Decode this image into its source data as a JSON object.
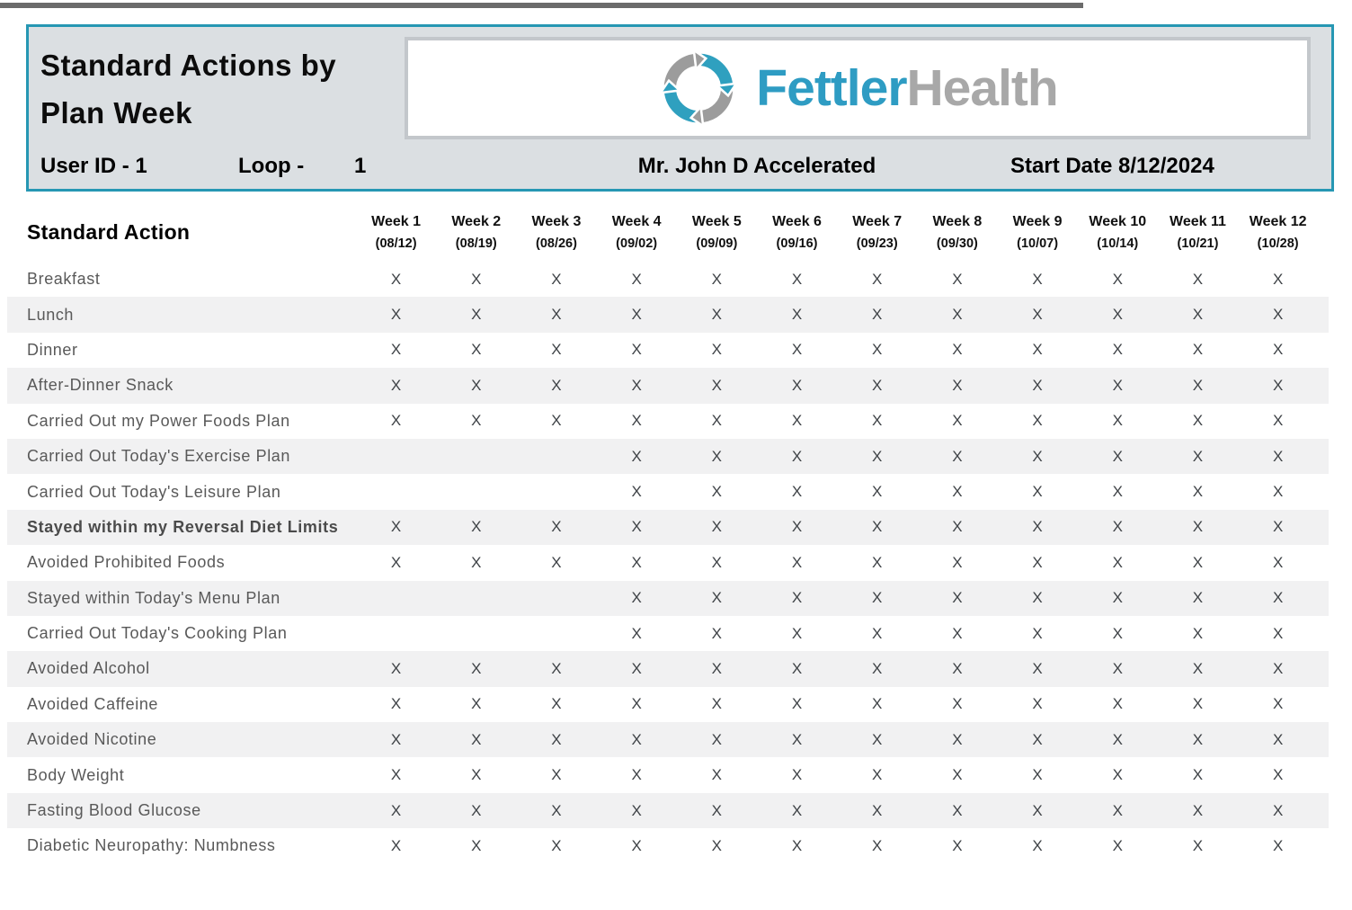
{
  "colors": {
    "accent_teal_border": "#2697B3",
    "header_background": "#DBDFE2",
    "logo_blue": "#2E9CC3",
    "logo_gray": "#A8A8A8",
    "icon_teal": "#2FA0BF",
    "icon_gray": "#9C9C9C",
    "row_stripe": "#F1F1F2",
    "label_text": "#595959",
    "mark_text": "#3F4347"
  },
  "header": {
    "title_line1": "Standard Actions by",
    "title_line2": "Plan Week",
    "user_id": "User ID - 1",
    "loop_label": "Loop -",
    "loop_value": "1",
    "patient": "Mr. John D Accelerated",
    "start_date": "Start Date 8/12/2024",
    "logo": {
      "icon": "circular-arrows-icon",
      "primary": "Fettler",
      "secondary": "Health"
    }
  },
  "table": {
    "column_header": "Standard Action",
    "mark_symbol": "X",
    "weeks": [
      {
        "label": "Week 1",
        "date": "(08/12)"
      },
      {
        "label": "Week 2",
        "date": "(08/19)"
      },
      {
        "label": "Week 3",
        "date": "(08/26)"
      },
      {
        "label": "Week 4",
        "date": "(09/02)"
      },
      {
        "label": "Week 5",
        "date": "(09/09)"
      },
      {
        "label": "Week 6",
        "date": "(09/16)"
      },
      {
        "label": "Week 7",
        "date": "(09/23)"
      },
      {
        "label": "Week 8",
        "date": "(09/30)"
      },
      {
        "label": "Week 9",
        "date": "(10/07)"
      },
      {
        "label": "Week 10",
        "date": "(10/14)"
      },
      {
        "label": "Week 11",
        "date": "(10/21)"
      },
      {
        "label": "Week 12",
        "date": "(10/28)"
      }
    ],
    "rows": [
      {
        "label": "Breakfast",
        "bold": false,
        "marks": [
          "X",
          "X",
          "X",
          "X",
          "X",
          "X",
          "X",
          "X",
          "X",
          "X",
          "X",
          "X"
        ]
      },
      {
        "label": "Lunch",
        "bold": false,
        "marks": [
          "X",
          "X",
          "X",
          "X",
          "X",
          "X",
          "X",
          "X",
          "X",
          "X",
          "X",
          "X"
        ]
      },
      {
        "label": "Dinner",
        "bold": false,
        "marks": [
          "X",
          "X",
          "X",
          "X",
          "X",
          "X",
          "X",
          "X",
          "X",
          "X",
          "X",
          "X"
        ]
      },
      {
        "label": "After-Dinner Snack",
        "bold": false,
        "marks": [
          "X",
          "X",
          "X",
          "X",
          "X",
          "X",
          "X",
          "X",
          "X",
          "X",
          "X",
          "X"
        ]
      },
      {
        "label": "Carried Out my Power Foods Plan",
        "bold": false,
        "marks": [
          "X",
          "X",
          "X",
          "X",
          "X",
          "X",
          "X",
          "X",
          "X",
          "X",
          "X",
          "X"
        ]
      },
      {
        "label": "Carried Out Today's Exercise Plan",
        "bold": false,
        "marks": [
          "",
          "",
          "",
          "X",
          "X",
          "X",
          "X",
          "X",
          "X",
          "X",
          "X",
          "X"
        ]
      },
      {
        "label": "Carried Out Today's Leisure Plan",
        "bold": false,
        "marks": [
          "",
          "",
          "",
          "X",
          "X",
          "X",
          "X",
          "X",
          "X",
          "X",
          "X",
          "X"
        ]
      },
      {
        "label": "Stayed within my Reversal Diet Limits",
        "bold": true,
        "marks": [
          "X",
          "X",
          "X",
          "X",
          "X",
          "X",
          "X",
          "X",
          "X",
          "X",
          "X",
          "X"
        ]
      },
      {
        "label": "Avoided Prohibited Foods",
        "bold": false,
        "marks": [
          "X",
          "X",
          "X",
          "X",
          "X",
          "X",
          "X",
          "X",
          "X",
          "X",
          "X",
          "X"
        ]
      },
      {
        "label": "Stayed within Today's Menu Plan",
        "bold": false,
        "marks": [
          "",
          "",
          "",
          "X",
          "X",
          "X",
          "X",
          "X",
          "X",
          "X",
          "X",
          "X"
        ]
      },
      {
        "label": "Carried Out Today's Cooking Plan",
        "bold": false,
        "marks": [
          "",
          "",
          "",
          "X",
          "X",
          "X",
          "X",
          "X",
          "X",
          "X",
          "X",
          "X"
        ]
      },
      {
        "label": "Avoided Alcohol",
        "bold": false,
        "marks": [
          "X",
          "X",
          "X",
          "X",
          "X",
          "X",
          "X",
          "X",
          "X",
          "X",
          "X",
          "X"
        ]
      },
      {
        "label": "Avoided Caffeine",
        "bold": false,
        "marks": [
          "X",
          "X",
          "X",
          "X",
          "X",
          "X",
          "X",
          "X",
          "X",
          "X",
          "X",
          "X"
        ]
      },
      {
        "label": "Avoided Nicotine",
        "bold": false,
        "marks": [
          "X",
          "X",
          "X",
          "X",
          "X",
          "X",
          "X",
          "X",
          "X",
          "X",
          "X",
          "X"
        ]
      },
      {
        "label": "Body Weight",
        "bold": false,
        "marks": [
          "X",
          "X",
          "X",
          "X",
          "X",
          "X",
          "X",
          "X",
          "X",
          "X",
          "X",
          "X"
        ]
      },
      {
        "label": "Fasting Blood Glucose",
        "bold": false,
        "marks": [
          "X",
          "X",
          "X",
          "X",
          "X",
          "X",
          "X",
          "X",
          "X",
          "X",
          "X",
          "X"
        ]
      },
      {
        "label": "Diabetic Neuropathy: Numbness",
        "bold": false,
        "marks": [
          "X",
          "X",
          "X",
          "X",
          "X",
          "X",
          "X",
          "X",
          "X",
          "X",
          "X",
          "X"
        ]
      }
    ]
  }
}
